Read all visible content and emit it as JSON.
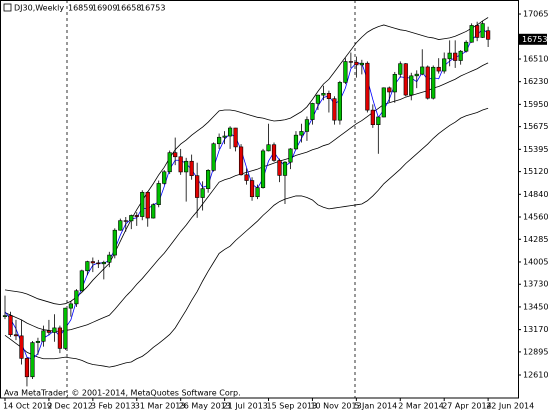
{
  "chart_data": {
    "type": "candlestick",
    "title": "DJ30,Weekly",
    "annotation": "Ava MetaTrader, © 2001-2014, MetaQuotes Software Corp.",
    "categories": [
      "14 Oct 2012",
      null,
      null,
      null,
      null,
      null,
      null,
      null,
      "9 Dec 2012",
      null,
      null,
      null,
      null,
      null,
      null,
      null,
      "3 Feb 2013",
      null,
      null,
      null,
      null,
      null,
      null,
      null,
      "31 Mar 2013",
      null,
      null,
      null,
      null,
      null,
      null,
      null,
      "26 May 2013",
      null,
      null,
      null,
      null,
      null,
      null,
      null,
      "21 Jul 2013",
      null,
      null,
      null,
      null,
      null,
      null,
      null,
      "15 Sep 2013",
      null,
      null,
      null,
      null,
      null,
      null,
      null,
      "10 Nov 2013",
      null,
      null,
      null,
      null,
      null,
      null,
      null,
      "5 Jan 2014",
      null,
      null,
      null,
      null,
      null,
      null,
      null,
      "2 Mar 2014",
      null,
      null,
      null,
      null,
      null,
      null,
      null,
      "27 Apr 2014",
      null,
      null,
      null,
      null,
      null,
      null,
      null,
      "22 Jun 2014"
    ],
    "open": [
      13330,
      13343,
      13107,
      13093,
      12815,
      12588,
      13010,
      13026,
      13155,
      13135,
      13191,
      12938,
      13435,
      13488,
      13650,
      13896,
      14010,
      13993,
      13982,
      14001,
      14090,
      14397,
      14515,
      14512,
      14579,
      14565,
      14865,
      14547,
      14712,
      14974,
      15118,
      15354,
      15303,
      15116,
      15248,
      15070,
      14800,
      14910,
      15136,
      15464,
      15544,
      15559,
      15658,
      15425,
      15081,
      15010,
      14810,
      14922,
      15376,
      15452,
      15258,
      15073,
      15237,
      15400,
      15570,
      15616,
      15762,
      15962,
      16064,
      16086,
      16020,
      15755,
      16221,
      16479,
      16470,
      16437,
      16458,
      15879,
      15699,
      15794,
      16154,
      16103,
      16321,
      16452,
      16065,
      16302,
      16323,
      16412,
      16026,
      16408,
      16361,
      16512,
      16583,
      16491,
      16606,
      16717,
      16924,
      16776,
      16859
    ],
    "high": [
      13590,
      13390,
      13290,
      13290,
      12830,
      13030,
      13070,
      13220,
      13290,
      13360,
      13220,
      13440,
      13520,
      13670,
      13910,
      14020,
      14060,
      14030,
      14020,
      14130,
      14420,
      14540,
      14560,
      14590,
      14620,
      14890,
      14880,
      14730,
      15010,
      15140,
      15380,
      15540,
      15400,
      15290,
      15330,
      15230,
      15000,
      15150,
      15480,
      15590,
      15620,
      15680,
      15660,
      15460,
      15160,
      15050,
      14960,
      15400,
      15710,
      15480,
      15280,
      15250,
      15410,
      15620,
      15710,
      15800,
      15970,
      16070,
      16180,
      16120,
      16050,
      16240,
      16520,
      16590,
      16540,
      16500,
      16480,
      15950,
      15800,
      16160,
      16170,
      16350,
      16480,
      16460,
      16340,
      16370,
      16630,
      16430,
      16430,
      16520,
      16590,
      16740,
      16740,
      16620,
      16740,
      16950,
      16970,
      16980,
      16909
    ],
    "low": [
      13300,
      13080,
      13040,
      12740,
      12470,
      12560,
      12860,
      12960,
      13100,
      13020,
      12880,
      12920,
      13330,
      13450,
      13640,
      13840,
      13880,
      13930,
      13790,
      13940,
      14050,
      14390,
      14380,
      14410,
      14450,
      14520,
      14440,
      14540,
      14680,
      14960,
      15090,
      15200,
      15080,
      14750,
      15020,
      14550,
      14640,
      14860,
      15120,
      15400,
      15460,
      15400,
      15370,
      15070,
      14960,
      14760,
      14780,
      14910,
      15370,
      15240,
      14990,
      14720,
      15150,
      15390,
      15480,
      15500,
      15700,
      15880,
      16000,
      15850,
      15700,
      15700,
      16200,
      16400,
      16280,
      16320,
      15850,
      15660,
      15340,
      15790,
      15980,
      15970,
      16280,
      16050,
      16000,
      16150,
      16310,
      16010,
      16010,
      16330,
      16330,
      16420,
      16400,
      16440,
      16590,
      16710,
      16730,
      16770,
      16658
    ],
    "close": [
      13343,
      13107,
      13093,
      12815,
      12588,
      13010,
      13026,
      13155,
      13135,
      13191,
      12938,
      13435,
      13488,
      13650,
      13896,
      14010,
      13993,
      13982,
      14001,
      14090,
      14397,
      14515,
      14512,
      14579,
      14565,
      14865,
      14547,
      14712,
      14974,
      15118,
      15354,
      15303,
      15116,
      15248,
      15070,
      14800,
      14910,
      15136,
      15464,
      15544,
      15559,
      15658,
      15425,
      15081,
      15010,
      14810,
      14922,
      15376,
      15452,
      15258,
      15073,
      15237,
      15400,
      15570,
      15616,
      15762,
      15962,
      16064,
      16086,
      16020,
      15755,
      16221,
      16479,
      16470,
      16437,
      16458,
      15879,
      15699,
      15794,
      16154,
      16103,
      16321,
      16452,
      16065,
      16302,
      16323,
      16412,
      16026,
      16408,
      16361,
      16512,
      16583,
      16491,
      16606,
      16717,
      16924,
      16776,
      16947,
      16753
    ],
    "up_color": "#00c000",
    "down_color": "#e00000",
    "bands": {
      "color": "#000000",
      "upper": [
        13660,
        13650,
        13640,
        13630,
        13610,
        13580,
        13550,
        13530,
        13510,
        13490,
        13480,
        13490,
        13520,
        13570,
        13630,
        13700,
        13780,
        13850,
        13920,
        13987,
        14120,
        14260,
        14400,
        14530,
        14650,
        14760,
        14870,
        14970,
        15080,
        15173,
        15290,
        15390,
        15460,
        15510,
        15570,
        15620,
        15670,
        15730,
        15800,
        15870,
        15880,
        15880,
        15870,
        15850,
        15830,
        15810,
        15790,
        15780,
        15760,
        15745,
        15750,
        15760,
        15780,
        15820,
        15860,
        15920,
        16010,
        16110,
        16200,
        16260,
        16350,
        16440,
        16530,
        16620,
        16710,
        16780,
        16840,
        16880,
        16910,
        16930,
        16910,
        16890,
        16870,
        16860,
        16840,
        16820,
        16800,
        16780,
        16770,
        16750,
        16760,
        16770,
        16790,
        16820,
        16850,
        16890,
        16930,
        16980,
        17022
      ],
      "middle": [
        13380,
        13350,
        13320,
        13290,
        13250,
        13220,
        13190,
        13170,
        13160,
        13150,
        13150,
        13160,
        13170,
        13190,
        13210,
        13230,
        13260,
        13290,
        13320,
        13347,
        13420,
        13500,
        13580,
        13650,
        13730,
        13800,
        13880,
        13960,
        14040,
        14113,
        14200,
        14290,
        14380,
        14460,
        14550,
        14630,
        14720,
        14810,
        14900,
        14990,
        15020,
        15040,
        15070,
        15090,
        15110,
        15130,
        15150,
        15180,
        15200,
        15225,
        15250,
        15270,
        15290,
        15320,
        15340,
        15360,
        15390,
        15410,
        15440,
        15460,
        15510,
        15560,
        15610,
        15660,
        15710,
        15750,
        15800,
        15850,
        15900,
        15950,
        15970,
        15990,
        16010,
        16040,
        16060,
        16080,
        16100,
        16120,
        16150,
        16170,
        16200,
        16230,
        16260,
        16300,
        16330,
        16360,
        16390,
        16430,
        16462
      ],
      "lower": [
        13100,
        13050,
        13000,
        12950,
        12890,
        12860,
        12830,
        12810,
        12810,
        12810,
        12820,
        12830,
        12820,
        12810,
        12790,
        12760,
        12740,
        12730,
        12720,
        12707,
        12720,
        12740,
        12760,
        12770,
        12810,
        12840,
        12890,
        12950,
        13000,
        13053,
        13110,
        13190,
        13300,
        13410,
        13530,
        13640,
        13770,
        13890,
        14000,
        14110,
        14160,
        14200,
        14270,
        14330,
        14390,
        14450,
        14510,
        14580,
        14640,
        14705,
        14750,
        14780,
        14800,
        14820,
        14820,
        14800,
        14770,
        14710,
        14680,
        14660,
        14670,
        14680,
        14690,
        14700,
        14710,
        14720,
        14760,
        14820,
        14890,
        14970,
        15030,
        15090,
        15150,
        15220,
        15280,
        15340,
        15400,
        15460,
        15530,
        15590,
        15640,
        15690,
        15730,
        15780,
        15810,
        15830,
        15850,
        15880,
        15902
      ]
    },
    "ma": {
      "color": "#0000ff",
      "values": [
        13390,
        13300,
        13180,
        13005,
        12830,
        12805,
        12875,
        13065,
        13105,
        13160,
        13090,
        13190,
        13290,
        13525,
        13680,
        13850,
        13965,
        13995,
        13990,
        14025,
        14160,
        14335,
        14475,
        14535,
        14550,
        14670,
        14660,
        14710,
        14745,
        14935,
        15150,
        15260,
        15260,
        15220,
        15145,
        15040,
        14925,
        14950,
        15170,
        15380,
        15520,
        15590,
        15545,
        15390,
        15170,
        14965,
        14915,
        15035,
        15250,
        15360,
        15260,
        15190,
        15235,
        15400,
        15530,
        15650,
        15780,
        15930,
        16035,
        16055,
        15955,
        16000,
        16150,
        16390,
        16460,
        16455,
        16260,
        16010,
        15790,
        15880,
        16015,
        16195,
        16290,
        16280,
        16275,
        16230,
        16345,
        16255,
        16280,
        16265,
        16425,
        16485,
        16530,
        16560,
        16605,
        16750,
        16805,
        16880,
        16825
      ]
    },
    "ylim": [
      12326,
      17238
    ],
    "yticks": [
      12610,
      12895,
      13170,
      13450,
      13730,
      14005,
      14285,
      14560,
      14840,
      15120,
      15395,
      15675,
      15950,
      16230,
      16510,
      17065
    ]
  }
}
